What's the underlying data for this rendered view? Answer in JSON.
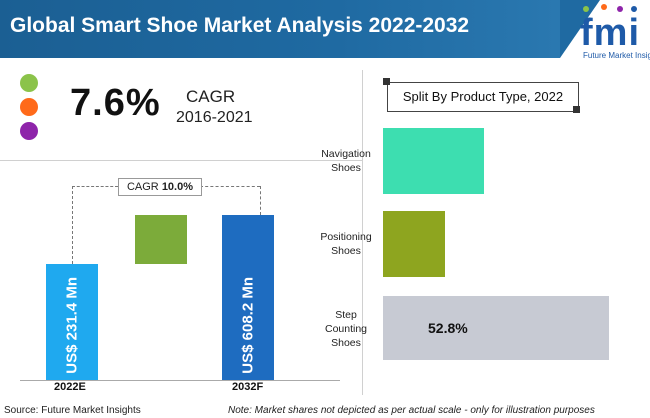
{
  "header": {
    "title": "Global Smart Shoe Market Analysis 2022-2032"
  },
  "logo": {
    "text": "fmi",
    "sub": "Future Market Insights"
  },
  "colors": {
    "header_blue": "#1f6aa2",
    "dot_green": "#8bc34a",
    "dot_orange": "#ff6a1a",
    "dot_purple": "#8e24aa",
    "bar_2022": "#1fa9ef",
    "bar_growth": "#7cab3a",
    "bar_2032": "#1e6cc0",
    "navigation": "#3ddeb0",
    "positioning": "#8ea51f",
    "step_counting": "#c7cad3"
  },
  "summary": {
    "cagr_value": "7.6%",
    "cagr_label": "CAGR",
    "cagr_period": "2016-2021"
  },
  "chart_data": [
    {
      "type": "bar",
      "categories": [
        "2022E",
        "2032F"
      ],
      "values": [
        231.4,
        608.2
      ],
      "value_labels": [
        "US$ 231.4 Mn",
        "US$ 608.2 Mn"
      ],
      "cagr_label": "CAGR",
      "cagr_value": "10.0%"
    },
    {
      "type": "bar",
      "orientation": "horizontal",
      "title": "Split By Product Type, 2022",
      "categories": [
        [
          "Navigation",
          "Shoes"
        ],
        [
          "Positioning",
          "Shoes"
        ],
        [
          "Step",
          "Counting",
          "Shoes"
        ]
      ],
      "values": [
        23.5,
        14.5,
        52.8
      ],
      "data_labels": [
        "",
        "",
        "52.8%"
      ]
    }
  ],
  "footer": {
    "source": "Source: Future Market Insights",
    "note": "Note: Market shares not depicted as per actual scale - only for illustration purposes"
  }
}
